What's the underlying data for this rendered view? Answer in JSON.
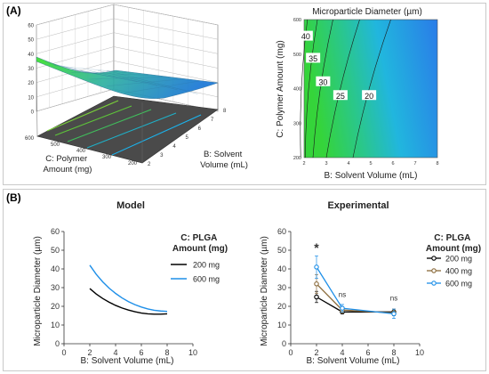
{
  "panel_a": {
    "label": "(A)"
  },
  "panel_b": {
    "label": "(B)"
  },
  "chart_data": [
    {
      "id": "surface3d",
      "type": "surface-3d",
      "x_axis_label": "B: Solvent Volume (mL)",
      "y_axis_label_lines": [
        "C: Polymer",
        "Amount (mg)"
      ],
      "x_ticks": [
        "2",
        "3",
        "4",
        "5",
        "6",
        "7",
        "8"
      ],
      "y_ticks": [
        "600",
        "500",
        "400",
        "300",
        "200"
      ],
      "z_ticks": [
        "0",
        "10",
        "20",
        "30",
        "40",
        "50",
        "60"
      ],
      "z_range": [
        0,
        60
      ],
      "surface_color_high": "#39e028",
      "surface_color_low": "#1a77d6",
      "floor_color": "#4a4a4a",
      "floor_contour_colors": [
        "#7ad13a",
        "#5ec53a",
        "#40bf5c",
        "#1fb0c8",
        "#1ab5f0"
      ]
    },
    {
      "id": "contour",
      "type": "heatmap",
      "title": "Microparticle Diameter (µm)",
      "xlabel": "B: Solvent Volume (mL)",
      "ylabel": "C: Polymer Amount (mg)",
      "x_ticks": [
        "2",
        "3",
        "4",
        "5",
        "6",
        "7",
        "8"
      ],
      "y_ticks": [
        "600",
        "500",
        "400",
        "300",
        "200"
      ],
      "xlim": [
        2,
        8
      ],
      "ylim": [
        200,
        600
      ],
      "contour_labels": [
        "40",
        "35",
        "30",
        "25",
        "20"
      ],
      "contour_levels": [
        40,
        35,
        30,
        25,
        20
      ],
      "contour_lines": [
        {
          "level": 40,
          "x_at_ymin": 1.85,
          "x_at_ymax": 2.15
        },
        {
          "level": 35,
          "x_at_ymin": 2.05,
          "x_at_ymax": 2.6
        },
        {
          "level": 30,
          "x_at_ymin": 2.4,
          "x_at_ymax": 3.3
        },
        {
          "level": 25,
          "x_at_ymin": 3.0,
          "x_at_ymax": 4.5
        },
        {
          "level": 20,
          "x_at_ymin": 4.2,
          "x_at_ymax": 5.9
        }
      ],
      "color_high": "#35d43a",
      "color_low": "#2a7ce8"
    },
    {
      "id": "model",
      "type": "line",
      "title": "Model",
      "xlabel": "B: Solvent Volume (mL)",
      "ylabel": "Microparticle Diameter (µm)",
      "xlim": [
        0,
        10
      ],
      "ylim": [
        0,
        60
      ],
      "x_ticks": [
        "0",
        "2",
        "4",
        "6",
        "8",
        "10"
      ],
      "y_ticks": [
        "0",
        "10",
        "20",
        "30",
        "40",
        "50",
        "60"
      ],
      "legend_title_lines": [
        "C: PLGA",
        "Amount (mg)"
      ],
      "series": [
        {
          "name": "200 mg",
          "color": "#000000",
          "points": [
            [
              2,
              29.5
            ],
            [
              2.5,
              26.6
            ],
            [
              3,
              24.2
            ],
            [
              3.5,
              22.2
            ],
            [
              4,
              20.5
            ],
            [
              4.5,
              19.1
            ],
            [
              5,
              18.0
            ],
            [
              5.5,
              17.1
            ],
            [
              6,
              16.4
            ],
            [
              6.5,
              16.0
            ],
            [
              7,
              15.8
            ],
            [
              7.5,
              15.8
            ],
            [
              8,
              16.0
            ]
          ]
        },
        {
          "name": "600 mg",
          "color": "#1e8fe8",
          "points": [
            [
              2,
              42.0
            ],
            [
              2.5,
              37.1
            ],
            [
              3,
              33.1
            ],
            [
              3.5,
              29.7
            ],
            [
              4,
              26.9
            ],
            [
              4.5,
              24.5
            ],
            [
              5,
              22.5
            ],
            [
              5.5,
              20.9
            ],
            [
              6,
              19.6
            ],
            [
              6.5,
              18.6
            ],
            [
              7,
              17.9
            ],
            [
              7.5,
              17.5
            ],
            [
              8,
              17.3
            ]
          ]
        }
      ]
    },
    {
      "id": "experimental",
      "type": "line",
      "title": "Experimental",
      "xlabel": "B: Solvent Volume (mL)",
      "ylabel": "Microparticle Diameter (µm)",
      "xlim": [
        0,
        10
      ],
      "ylim": [
        0,
        60
      ],
      "x_ticks": [
        "0",
        "2",
        "4",
        "6",
        "8",
        "10"
      ],
      "y_ticks": [
        "0",
        "10",
        "20",
        "30",
        "40",
        "50",
        "60"
      ],
      "legend_title_lines": [
        "C: PLGA",
        "Amount (mg)"
      ],
      "annotations": [
        {
          "text": "*",
          "x": 2,
          "y": 52
        },
        {
          "text": "ns",
          "x": 4,
          "y": 25
        },
        {
          "text": "ns",
          "x": 8,
          "y": 23
        }
      ],
      "series": [
        {
          "name": "200 mg",
          "color": "#000000",
          "points": [
            {
              "x": 2,
              "y": 25,
              "err": 3
            },
            {
              "x": 4,
              "y": 17,
              "err": 1
            },
            {
              "x": 8,
              "y": 17,
              "err": 1.5
            }
          ]
        },
        {
          "name": "400 mg",
          "color": "#8a6a3a",
          "points": [
            {
              "x": 2,
              "y": 32,
              "err": 5
            },
            {
              "x": 4,
              "y": 18,
              "err": 1.5
            },
            {
              "x": 8,
              "y": 16.5,
              "err": 1.5
            }
          ]
        },
        {
          "name": "600 mg",
          "color": "#1e8fe8",
          "points": [
            {
              "x": 2,
              "y": 41,
              "err": 6
            },
            {
              "x": 4,
              "y": 19,
              "err": 2
            },
            {
              "x": 8,
              "y": 16,
              "err": 2.5
            }
          ]
        }
      ]
    }
  ]
}
